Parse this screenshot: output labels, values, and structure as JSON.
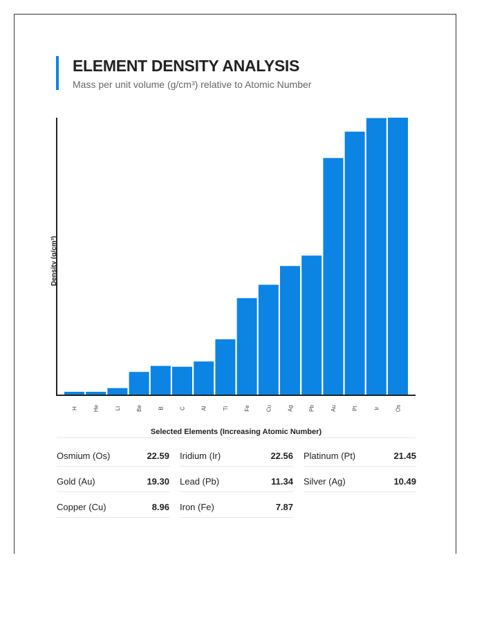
{
  "header": {
    "title": "ELEMENT DENSITY ANALYSIS",
    "subtitle": "Mass per unit volume (g/cm³) relative to Atomic Number"
  },
  "colors": {
    "accent": "#0c84e4",
    "bar": "#0c84e4",
    "axis": "#222222"
  },
  "chart_data": {
    "type": "bar",
    "title": "",
    "xlabel": "Selected Elements (Increasing Atomic Number)",
    "ylabel": "Density (g/cm³)",
    "categories": [
      "H",
      "He",
      "Li",
      "Be",
      "B",
      "C",
      "Al",
      "Ti",
      "Fe",
      "Cu",
      "Ag",
      "Pb",
      "Au",
      "Pt",
      "Ir",
      "Os"
    ],
    "values": [
      9e-05,
      0.00018,
      0.53,
      1.85,
      2.34,
      2.27,
      2.7,
      4.51,
      7.87,
      8.96,
      10.49,
      11.34,
      19.3,
      21.45,
      22.56,
      22.59
    ],
    "ylim": [
      0,
      22.59
    ],
    "grid": false,
    "legend": "none"
  },
  "table": [
    {
      "label": "Osmium (Os)",
      "value": "22.59"
    },
    {
      "label": "Iridium (Ir)",
      "value": "22.56"
    },
    {
      "label": "Platinum (Pt)",
      "value": "21.45"
    },
    {
      "label": "Gold (Au)",
      "value": "19.30"
    },
    {
      "label": "Lead (Pb)",
      "value": "11.34"
    },
    {
      "label": "Silver (Ag)",
      "value": "10.49"
    },
    {
      "label": "Copper (Cu)",
      "value": "8.96"
    },
    {
      "label": "Iron (Fe)",
      "value": "7.87"
    }
  ]
}
